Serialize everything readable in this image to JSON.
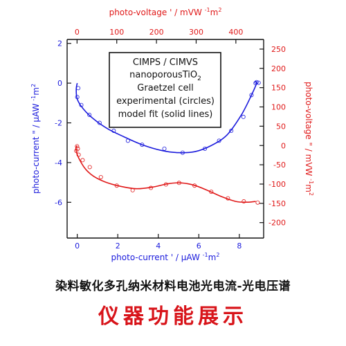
{
  "chart_data": {
    "type": "scatter",
    "axes": {
      "bottom": {
        "label_prefix": "photo-current ' / ",
        "unit": "µAW",
        "exp": "-1",
        "unit2": "m",
        "exp2": "2",
        "range": [
          -0.5,
          9.2
        ],
        "ticks": [
          0,
          2,
          4,
          6,
          8
        ],
        "color": "#1a1adc"
      },
      "left": {
        "label_prefix": "photo-current \" / ",
        "unit": "µAW",
        "exp": "-1",
        "unit2": "m",
        "exp2": "2",
        "range": [
          -7.8,
          2.2
        ],
        "ticks": [
          2,
          0,
          -2,
          -4,
          -6
        ],
        "color": "#1a1adc"
      },
      "top": {
        "label_prefix": "photo-voltage ' / ",
        "unit": "mVW",
        "exp": "-1",
        "unit2": "m",
        "exp2": "2",
        "range": [
          -25,
          470
        ],
        "ticks": [
          0,
          100,
          200,
          300,
          400
        ],
        "color": "#e01818"
      },
      "right": {
        "label_prefix": "photo-voltage \" / ",
        "unit": "mVW",
        "exp": "-1",
        "unit2": "m",
        "exp2": "2",
        "range": [
          -240,
          275
        ],
        "ticks": [
          250,
          200,
          150,
          100,
          50,
          0,
          -50,
          -100,
          -150,
          -200
        ],
        "color": "#e01818"
      }
    },
    "annotation": [
      "CIMPS / CIMVS",
      "nanoporousTiO",
      "2",
      "Graetzel cell",
      "experimental (circles)",
      "model fit (solid lines)"
    ],
    "series": [
      {
        "axes": "bottom-left",
        "color": "#1a1adc",
        "fit": [
          [
            0,
            0
          ],
          [
            -0.05,
            -0.3
          ],
          [
            0.0,
            -0.8
          ],
          [
            0.3,
            -1.3
          ],
          [
            0.8,
            -1.8
          ],
          [
            1.5,
            -2.3
          ],
          [
            2.3,
            -2.7
          ],
          [
            3.2,
            -3.1
          ],
          [
            4.2,
            -3.4
          ],
          [
            5.0,
            -3.5
          ],
          [
            5.8,
            -3.45
          ],
          [
            6.6,
            -3.15
          ],
          [
            7.4,
            -2.6
          ],
          [
            8.1,
            -1.6
          ],
          [
            8.6,
            -0.6
          ],
          [
            8.85,
            0.0
          ],
          [
            8.75,
            0.07
          ]
        ],
        "points": [
          [
            0.05,
            -0.25
          ],
          [
            0.0,
            -0.7
          ],
          [
            0.2,
            -1.1
          ],
          [
            0.6,
            -1.6
          ],
          [
            1.1,
            -2.0
          ],
          [
            1.8,
            -2.4
          ],
          [
            2.5,
            -2.9
          ],
          [
            3.2,
            -3.1
          ],
          [
            4.3,
            -3.3
          ],
          [
            5.2,
            -3.5
          ],
          [
            6.3,
            -3.3
          ],
          [
            7.0,
            -2.9
          ],
          [
            7.6,
            -2.4
          ],
          [
            8.2,
            -1.7
          ],
          [
            8.6,
            -0.6
          ],
          [
            8.85,
            0.05
          ],
          [
            8.95,
            0.02
          ],
          [
            8.8,
            0.0
          ]
        ]
      },
      {
        "axes": "top-right",
        "color": "#e01818",
        "fit": [
          [
            0,
            0
          ],
          [
            -3,
            -8
          ],
          [
            0,
            -22
          ],
          [
            8,
            -40
          ],
          [
            22,
            -62
          ],
          [
            42,
            -80
          ],
          [
            72,
            -95
          ],
          [
            110,
            -106
          ],
          [
            150,
            -112
          ],
          [
            190,
            -108
          ],
          [
            230,
            -99
          ],
          [
            262,
            -97
          ],
          [
            295,
            -103
          ],
          [
            330,
            -117
          ],
          [
            365,
            -133
          ],
          [
            400,
            -145
          ],
          [
            428,
            -147
          ],
          [
            450,
            -145
          ]
        ],
        "points": [
          [
            0,
            -2
          ],
          [
            2,
            -8
          ],
          [
            -2,
            -14
          ],
          [
            4,
            -24
          ],
          [
            14,
            -38
          ],
          [
            32,
            -56
          ],
          [
            60,
            -82
          ],
          [
            100,
            -104
          ],
          [
            140,
            -116
          ],
          [
            186,
            -110
          ],
          [
            224,
            -101
          ],
          [
            257,
            -97
          ],
          [
            296,
            -104
          ],
          [
            338,
            -120
          ],
          [
            380,
            -137
          ],
          [
            420,
            -145
          ],
          [
            455,
            -148
          ]
        ]
      }
    ]
  },
  "captions": {
    "sub": "染料敏化多孔纳米材料电池光电流-光电压谱",
    "main": "仪器功能展示"
  }
}
